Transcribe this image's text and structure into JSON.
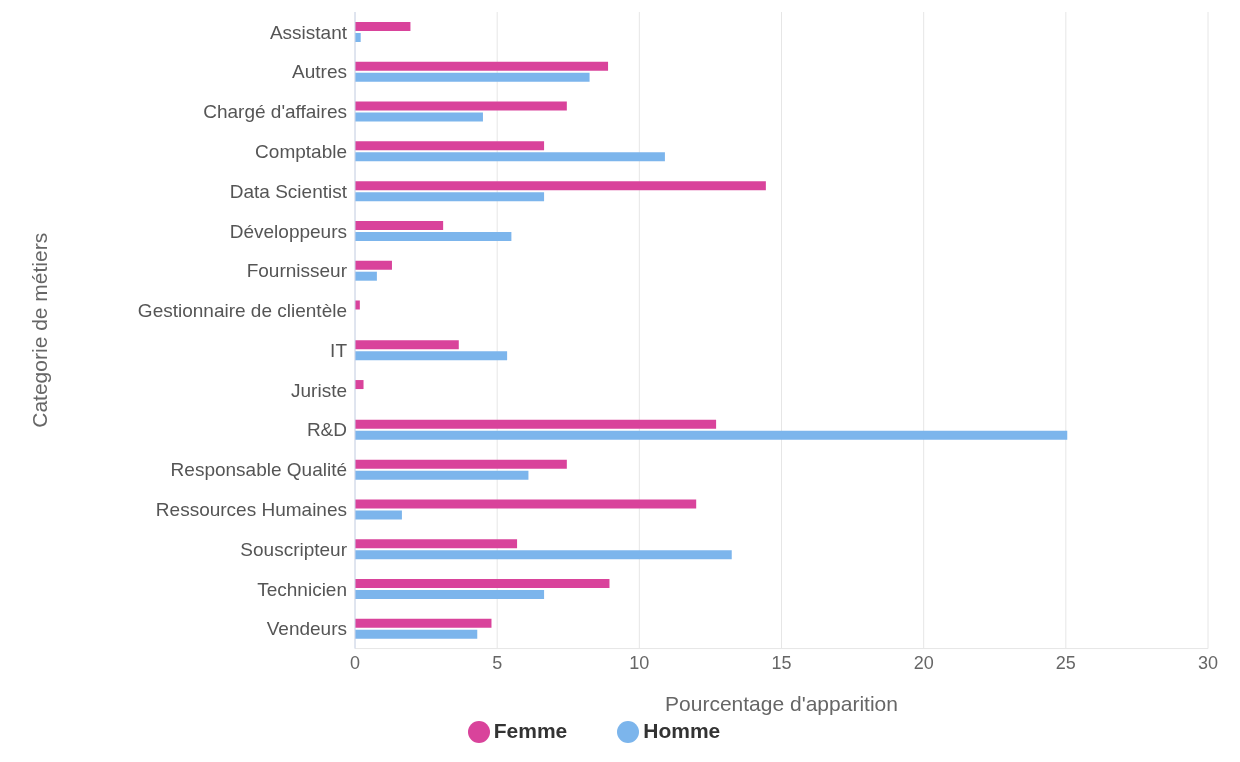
{
  "chart_data": {
    "type": "bar",
    "orientation": "horizontal",
    "xlabel": "Pourcentage d'apparition",
    "ylabel": "Categorie de métiers",
    "categories": [
      "Assistant",
      "Autres",
      "Chargé d'affaires",
      "Comptable",
      "Data Scientist",
      "Développeurs",
      "Fournisseur",
      "Gestionnaire de clientèle",
      "IT",
      "Juriste",
      "R&D",
      "Responsable Qualité",
      "Ressources Humaines",
      "Souscripteur",
      "Technicien",
      "Vendeurs"
    ],
    "series": [
      {
        "name": "Femme",
        "color": "#d9439b",
        "values": [
          1.95,
          8.9,
          7.45,
          6.65,
          14.45,
          3.1,
          1.3,
          0.17,
          3.65,
          0.3,
          12.7,
          7.45,
          12.0,
          5.7,
          8.95,
          4.8
        ]
      },
      {
        "name": "Homme",
        "color": "#7cb5ec",
        "values": [
          0.2,
          8.25,
          4.5,
          10.9,
          6.65,
          5.5,
          0.77,
          0,
          5.35,
          0,
          25.05,
          6.1,
          1.65,
          13.25,
          6.65,
          4.3
        ]
      }
    ],
    "xlim": [
      0,
      30
    ],
    "xticks": [
      0,
      5,
      10,
      15,
      20,
      25,
      30
    ],
    "grid": "x",
    "legend": "bottom"
  }
}
